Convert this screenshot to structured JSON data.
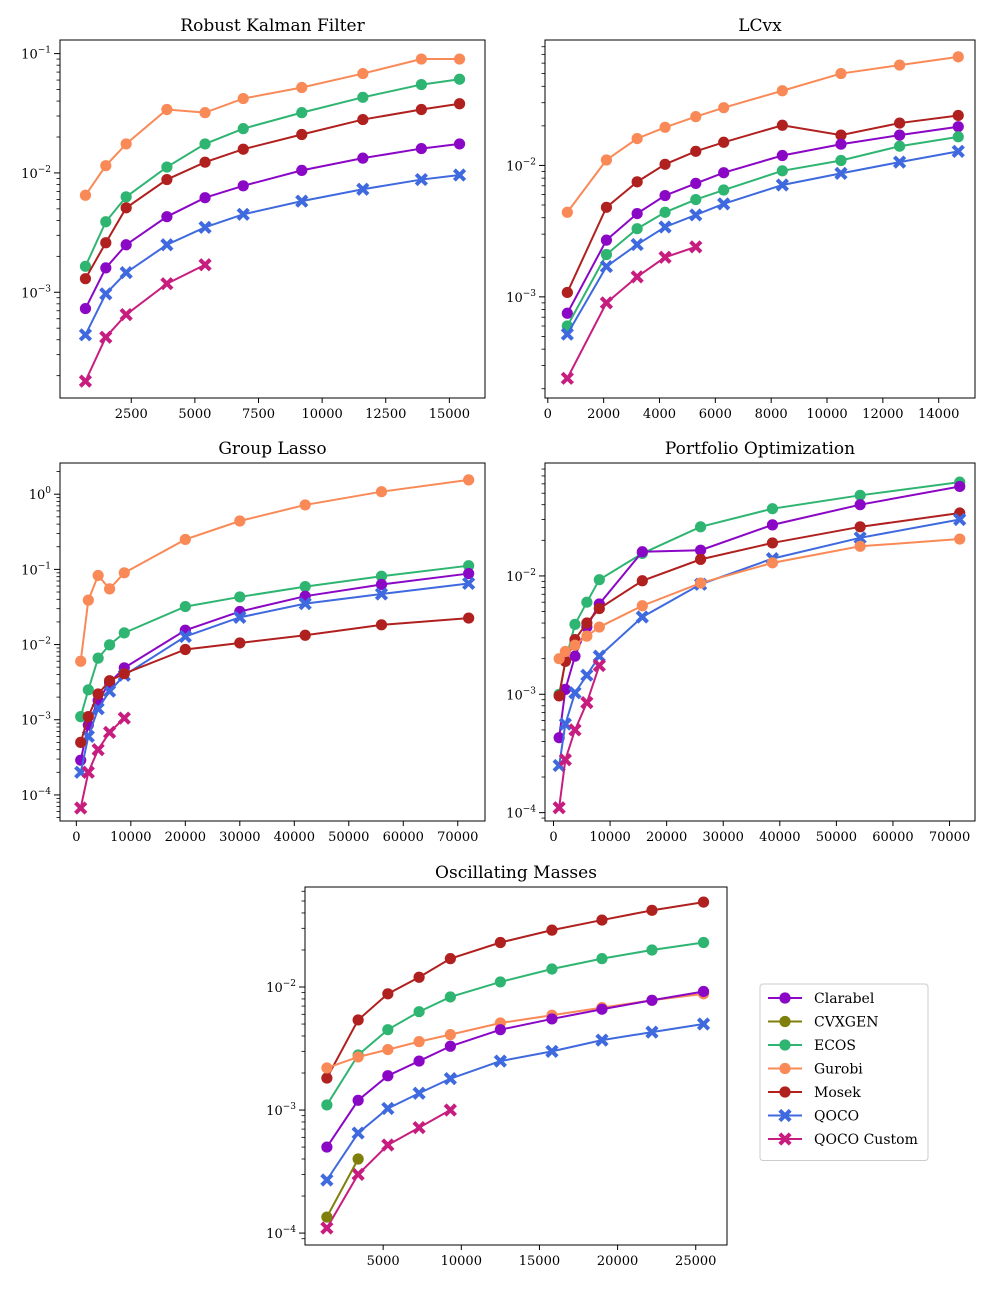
{
  "series_styles": [
    {
      "name": "Clarabel",
      "color": "#8b07c6",
      "marker": "circle"
    },
    {
      "name": "CVXGEN",
      "color": "#7f7f0b",
      "marker": "circle"
    },
    {
      "name": "ECOS",
      "color": "#2fb572",
      "marker": "circle"
    },
    {
      "name": "Gurobi",
      "color": "#f98a57",
      "marker": "circle"
    },
    {
      "name": "Mosek",
      "color": "#b0201f",
      "marker": "circle"
    },
    {
      "name": "QOCO",
      "color": "#3f69de",
      "marker": "x"
    },
    {
      "name": "QOCO Custom",
      "color": "#c71d7f",
      "marker": "x"
    }
  ],
  "legend": {
    "placement": "right of Oscillating Masses panel",
    "entries": [
      "Clarabel",
      "CVXGEN",
      "ECOS",
      "Gurobi",
      "Mosek",
      "QOCO",
      "QOCO Custom"
    ]
  },
  "chart_data": [
    {
      "type": "line",
      "title": "Robust Kalman Filter",
      "xlabel": "",
      "ylabel": "",
      "yscale": "log",
      "xlim": [
        -300,
        16400
      ],
      "ylim": [
        0.00013,
        0.13
      ],
      "xticks": [
        2500,
        5000,
        7500,
        10000,
        12500,
        15000
      ],
      "xtick_labels": [
        "2500",
        "5000",
        "7500",
        "10000",
        "12500",
        "15000"
      ],
      "ytick_exps": [
        -3,
        -2,
        -1
      ],
      "ytick_labels": [
        "10",
        "10",
        "10"
      ],
      "ytick_sups": [
        "−3",
        "−2",
        "−1"
      ],
      "grid": false,
      "series": [
        {
          "name": "Gurobi",
          "x": [
            700,
            1500,
            2300,
            3900,
            5400,
            6900,
            9200,
            11600,
            13900,
            15400
          ],
          "y": [
            0.0065,
            0.0115,
            0.0175,
            0.034,
            0.032,
            0.042,
            0.052,
            0.068,
            0.09,
            0.09
          ]
        },
        {
          "name": "ECOS",
          "x": [
            700,
            1500,
            2300,
            3900,
            5400,
            6900,
            9200,
            11600,
            13900,
            15400
          ],
          "y": [
            0.00165,
            0.0039,
            0.0063,
            0.0112,
            0.0175,
            0.0235,
            0.032,
            0.043,
            0.055,
            0.061
          ]
        },
        {
          "name": "Mosek",
          "x": [
            700,
            1500,
            2300,
            3900,
            5400,
            6900,
            9200,
            11600,
            13900,
            15400
          ],
          "y": [
            0.0013,
            0.0026,
            0.0051,
            0.0088,
            0.0123,
            0.0158,
            0.021,
            0.028,
            0.034,
            0.038
          ]
        },
        {
          "name": "Clarabel",
          "x": [
            700,
            1500,
            2300,
            3900,
            5400,
            6900,
            9200,
            11600,
            13900,
            15400
          ],
          "y": [
            0.00073,
            0.0016,
            0.0025,
            0.0043,
            0.0062,
            0.0078,
            0.0105,
            0.0133,
            0.016,
            0.0175
          ]
        },
        {
          "name": "QOCO",
          "x": [
            700,
            1500,
            2300,
            3900,
            5400,
            6900,
            9200,
            11600,
            13900,
            15400
          ],
          "y": [
            0.00044,
            0.00097,
            0.00146,
            0.0025,
            0.0035,
            0.0045,
            0.0058,
            0.0073,
            0.0088,
            0.0096
          ]
        },
        {
          "name": "QOCO Custom",
          "x": [
            700,
            1500,
            2300,
            3900,
            5400
          ],
          "y": [
            0.00018,
            0.00042,
            0.00065,
            0.00118,
            0.0017
          ]
        }
      ]
    },
    {
      "type": "line",
      "title": "LCvx",
      "xlabel": "",
      "ylabel": "",
      "yscale": "log",
      "xlim": [
        -100,
        15300
      ],
      "ylim": [
        0.00017,
        0.09
      ],
      "xticks": [
        0,
        2000,
        4000,
        6000,
        8000,
        10000,
        12000,
        14000
      ],
      "xtick_labels": [
        "0",
        "2000",
        "4000",
        "6000",
        "8000",
        "10000",
        "12000",
        "14000"
      ],
      "ytick_exps": [
        -3,
        -2
      ],
      "ytick_labels": [
        "10",
        "10"
      ],
      "ytick_sups": [
        "−3",
        "−2"
      ],
      "grid": false,
      "series": [
        {
          "name": "Gurobi",
          "x": [
            700,
            2100,
            3200,
            4200,
            5300,
            6300,
            8400,
            10500,
            12600,
            14700
          ],
          "y": [
            0.0044,
            0.011,
            0.016,
            0.0195,
            0.0235,
            0.0275,
            0.037,
            0.05,
            0.058,
            0.067
          ]
        },
        {
          "name": "Mosek",
          "x": [
            700,
            2100,
            3200,
            4200,
            5300,
            6300,
            8400,
            10500,
            12600,
            14700
          ],
          "y": [
            0.00108,
            0.0048,
            0.0075,
            0.0102,
            0.0128,
            0.015,
            0.0202,
            0.017,
            0.021,
            0.024
          ]
        },
        {
          "name": "Clarabel",
          "x": [
            700,
            2100,
            3200,
            4200,
            5300,
            6300,
            8400,
            10500,
            12600,
            14700
          ],
          "y": [
            0.00075,
            0.0027,
            0.0043,
            0.0059,
            0.0073,
            0.0088,
            0.0119,
            0.0145,
            0.017,
            0.0197
          ]
        },
        {
          "name": "ECOS",
          "x": [
            700,
            2100,
            3200,
            4200,
            5300,
            6300,
            8400,
            10500,
            12600,
            14700
          ],
          "y": [
            0.0006,
            0.0021,
            0.0033,
            0.0044,
            0.0055,
            0.0065,
            0.0091,
            0.0109,
            0.014,
            0.0165
          ]
        },
        {
          "name": "QOCO",
          "x": [
            700,
            2100,
            3200,
            4200,
            5300,
            6300,
            8400,
            10500,
            12600,
            14700
          ],
          "y": [
            0.00052,
            0.0017,
            0.0025,
            0.0034,
            0.0042,
            0.0051,
            0.0071,
            0.0087,
            0.0106,
            0.0128
          ]
        },
        {
          "name": "QOCO Custom",
          "x": [
            700,
            2100,
            3200,
            4200,
            5300
          ],
          "y": [
            0.00024,
            0.0009,
            0.00142,
            0.002,
            0.0024
          ]
        }
      ]
    },
    {
      "type": "line",
      "title": "Group Lasso",
      "xlabel": "",
      "ylabel": "",
      "yscale": "log",
      "xlim": [
        -3000,
        75000
      ],
      "ylim": [
        4.5e-05,
        2.6
      ],
      "xticks": [
        0,
        10000,
        20000,
        30000,
        40000,
        50000,
        60000,
        70000
      ],
      "xtick_labels": [
        "0",
        "10000",
        "20000",
        "30000",
        "40000",
        "50000",
        "60000",
        "70000"
      ],
      "ytick_exps": [
        -4,
        -3,
        -2,
        -1,
        0
      ],
      "ytick_labels": [
        "10",
        "10",
        "10",
        "10",
        "10"
      ],
      "ytick_sups": [
        "−4",
        "−3",
        "−2",
        "−1",
        "0"
      ],
      "grid": false,
      "series": [
        {
          "name": "Gurobi",
          "x": [
            800,
            2200,
            4000,
            6100,
            8800,
            20000,
            30000,
            42000,
            56000,
            72000
          ],
          "y": [
            0.006,
            0.039,
            0.083,
            0.055,
            0.09,
            0.25,
            0.44,
            0.72,
            1.08,
            1.55
          ]
        },
        {
          "name": "ECOS",
          "x": [
            800,
            2200,
            4000,
            6100,
            8800,
            20000,
            30000,
            42000,
            56000,
            72000
          ],
          "y": [
            0.0011,
            0.0025,
            0.0066,
            0.0099,
            0.0143,
            0.032,
            0.043,
            0.059,
            0.081,
            0.112
          ]
        },
        {
          "name": "Clarabel",
          "x": [
            800,
            2200,
            4000,
            6100,
            8800,
            20000,
            30000,
            42000,
            56000,
            72000
          ],
          "y": [
            0.00029,
            0.00085,
            0.0018,
            0.0031,
            0.0049,
            0.0155,
            0.0275,
            0.044,
            0.063,
            0.088
          ]
        },
        {
          "name": "QOCO",
          "x": [
            800,
            2200,
            4000,
            6100,
            8800,
            20000,
            30000,
            42000,
            56000,
            72000
          ],
          "y": [
            0.0002,
            0.0006,
            0.0014,
            0.0024,
            0.0039,
            0.0128,
            0.023,
            0.035,
            0.047,
            0.065
          ]
        },
        {
          "name": "Mosek",
          "x": [
            800,
            2200,
            4000,
            6100,
            8800,
            20000,
            30000,
            42000,
            56000,
            72000
          ],
          "y": [
            0.0005,
            0.0011,
            0.0022,
            0.0033,
            0.0041,
            0.0086,
            0.0105,
            0.0133,
            0.0183,
            0.0225
          ]
        },
        {
          "name": "QOCO Custom",
          "x": [
            800,
            2200,
            4000,
            6100,
            8800
          ],
          "y": [
            6.7e-05,
            0.0002,
            0.0004,
            0.00068,
            0.00105
          ]
        }
      ]
    },
    {
      "type": "line",
      "title": "Portfolio Optimization",
      "xlabel": "",
      "ylabel": "",
      "yscale": "log",
      "xlim": [
        -1500,
        74500
      ],
      "ylim": [
        8.5e-05,
        0.09
      ],
      "xticks": [
        0,
        10000,
        20000,
        30000,
        40000,
        50000,
        60000,
        70000
      ],
      "xtick_labels": [
        "0",
        "10000",
        "20000",
        "30000",
        "40000",
        "50000",
        "60000",
        "70000"
      ],
      "ytick_exps": [
        -4,
        -3,
        -2
      ],
      "ytick_labels": [
        "10",
        "10",
        "10"
      ],
      "ytick_sups": [
        "−4",
        "−3",
        "−2"
      ],
      "grid": false,
      "series": [
        {
          "name": "ECOS",
          "x": [
            1000,
            2100,
            3800,
            5900,
            8100,
            15700,
            26000,
            38700,
            54200,
            71800
          ],
          "y": [
            0.001,
            0.0019,
            0.0039,
            0.006,
            0.0093,
            0.0155,
            0.026,
            0.037,
            0.048,
            0.062
          ]
        },
        {
          "name": "Clarabel",
          "x": [
            1000,
            2100,
            3800,
            5900,
            8100,
            15700,
            26000,
            38700,
            54200,
            71800
          ],
          "y": [
            0.00043,
            0.0011,
            0.0021,
            0.0037,
            0.0058,
            0.016,
            0.0165,
            0.027,
            0.04,
            0.057
          ]
        },
        {
          "name": "Mosek",
          "x": [
            1000,
            2100,
            3800,
            5900,
            8100,
            15700,
            26000,
            38700,
            54200,
            71800
          ],
          "y": [
            0.00097,
            0.0019,
            0.0029,
            0.004,
            0.0053,
            0.0091,
            0.0138,
            0.019,
            0.026,
            0.034
          ]
        },
        {
          "name": "QOCO",
          "x": [
            1000,
            2100,
            3800,
            5900,
            8100,
            15700,
            26000,
            38700,
            54200,
            71800
          ],
          "y": [
            0.00025,
            0.00056,
            0.00103,
            0.00145,
            0.0021,
            0.0045,
            0.0085,
            0.014,
            0.021,
            0.03
          ]
        },
        {
          "name": "Gurobi",
          "x": [
            1000,
            2100,
            3800,
            5900,
            8100,
            15700,
            26000,
            38700,
            54200,
            71800
          ],
          "y": [
            0.002,
            0.0023,
            0.0026,
            0.0031,
            0.0037,
            0.0056,
            0.0087,
            0.0129,
            0.0178,
            0.0205
          ]
        },
        {
          "name": "QOCO Custom",
          "x": [
            1000,
            2100,
            3800,
            5900,
            8100
          ],
          "y": [
            0.00011,
            0.00028,
            0.0005,
            0.00085,
            0.00175
          ]
        }
      ]
    },
    {
      "type": "line",
      "title": "Oscillating Masses",
      "xlabel": "",
      "ylabel": "",
      "yscale": "log",
      "xlim": [
        0,
        27000
      ],
      "ylim": [
        8e-05,
        0.065
      ],
      "xticks": [
        5000,
        10000,
        15000,
        20000,
        25000
      ],
      "xtick_labels": [
        "5000",
        "10000",
        "15000",
        "20000",
        "25000"
      ],
      "ytick_exps": [
        -4,
        -3,
        -2
      ],
      "ytick_labels": [
        "10",
        "10",
        "10"
      ],
      "ytick_sups": [
        "−4",
        "−3",
        "−2"
      ],
      "grid": false,
      "series": [
        {
          "name": "Mosek",
          "x": [
            1400,
            3400,
            5300,
            7300,
            9300,
            12500,
            15800,
            19000,
            22200,
            25500
          ],
          "y": [
            0.00182,
            0.0054,
            0.0088,
            0.012,
            0.017,
            0.023,
            0.029,
            0.035,
            0.042,
            0.049
          ]
        },
        {
          "name": "ECOS",
          "x": [
            1400,
            3400,
            5300,
            7300,
            9300,
            12500,
            15800,
            19000,
            22200,
            25500
          ],
          "y": [
            0.0011,
            0.0028,
            0.0045,
            0.0063,
            0.0083,
            0.011,
            0.014,
            0.017,
            0.02,
            0.023
          ]
        },
        {
          "name": "Gurobi",
          "x": [
            1400,
            3400,
            5300,
            7300,
            9300,
            12500,
            15800,
            19000,
            22200,
            25500
          ],
          "y": [
            0.0022,
            0.0027,
            0.0031,
            0.0036,
            0.0041,
            0.0051,
            0.0059,
            0.0068,
            0.0078,
            0.0088
          ]
        },
        {
          "name": "Clarabel",
          "x": [
            1400,
            3400,
            5300,
            7300,
            9300,
            12500,
            15800,
            19000,
            22200,
            25500
          ],
          "y": [
            0.0005,
            0.0012,
            0.0019,
            0.0025,
            0.0033,
            0.0045,
            0.0055,
            0.0066,
            0.0078,
            0.0092
          ]
        },
        {
          "name": "QOCO",
          "x": [
            1400,
            3400,
            5300,
            7300,
            9300,
            12500,
            15800,
            19000,
            22200,
            25500
          ],
          "y": [
            0.00027,
            0.00065,
            0.00103,
            0.00137,
            0.0018,
            0.0025,
            0.003,
            0.0037,
            0.0043,
            0.005
          ]
        },
        {
          "name": "QOCO Custom",
          "x": [
            1400,
            3400,
            5300,
            7300,
            9300
          ],
          "y": [
            0.00011,
            0.0003,
            0.00052,
            0.00072,
            0.001
          ]
        },
        {
          "name": "CVXGEN",
          "x": [
            1400,
            3400
          ],
          "y": [
            0.000135,
            0.0004
          ]
        }
      ]
    }
  ]
}
